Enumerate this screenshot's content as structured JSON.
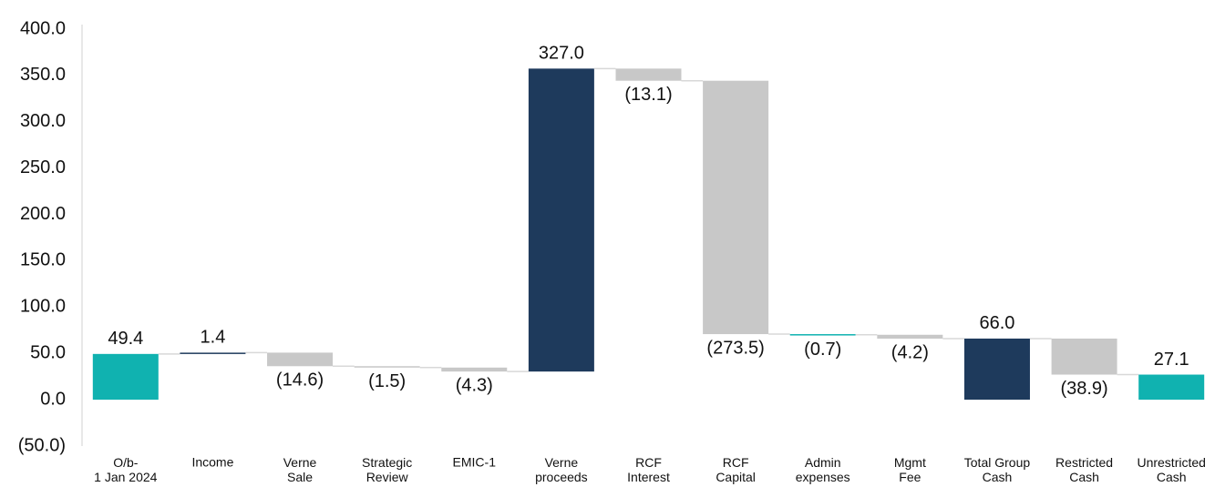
{
  "chart_data": {
    "type": "waterfall",
    "categories": [
      "O/b-\n1 Jan 2024",
      "Income",
      "Verne\nSale",
      "Strategic\nReview",
      "EMIC-1",
      "Verne\nproceeds",
      "RCF\nInterest",
      "RCF\nCapital",
      "Admin\nexpenses",
      "Mgmt\nFee",
      "Total Group\nCash",
      "Restricted\nCash",
      "Unrestricted\nCash"
    ],
    "values": [
      49.4,
      1.4,
      -14.6,
      -1.5,
      -4.3,
      327.0,
      -13.1,
      -273.5,
      -0.7,
      -4.2,
      66.0,
      -38.9,
      27.1
    ],
    "value_labels": [
      "49.4",
      "1.4",
      "(14.6)",
      "(1.5)",
      "(4.3)",
      "327.0",
      "(13.1)",
      "(273.5)",
      "(0.7)",
      "(4.2)",
      "66.0",
      "(38.9)",
      "27.1"
    ],
    "total": [
      true,
      false,
      false,
      false,
      false,
      false,
      false,
      false,
      false,
      false,
      true,
      false,
      true
    ],
    "colors": [
      "#10b2b0",
      "#1e3a5c",
      "#c8c8c8",
      "#c8c8c8",
      "#c8c8c8",
      "#1e3a5c",
      "#c8c8c8",
      "#c8c8c8",
      "#10b2b0",
      "#c8c8c8",
      "#1e3a5c",
      "#c8c8c8",
      "#10b2b0"
    ],
    "ylim": [
      -50,
      400
    ],
    "yticks": [
      {
        "value": -50,
        "label": "(50.0)"
      },
      {
        "value": 0,
        "label": "0.0"
      },
      {
        "value": 50,
        "label": "50.0"
      },
      {
        "value": 100,
        "label": "100.0"
      },
      {
        "value": 150,
        "label": "150.0"
      },
      {
        "value": 200,
        "label": "200.0"
      },
      {
        "value": 250,
        "label": "250.0"
      },
      {
        "value": 300,
        "label": "300.0"
      },
      {
        "value": 350,
        "label": "350.0"
      },
      {
        "value": 400,
        "label": "400.0"
      }
    ],
    "grid": false
  }
}
